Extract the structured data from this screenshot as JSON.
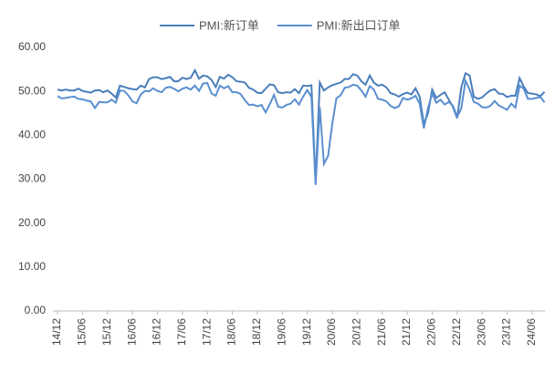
{
  "chart_data": {
    "type": "line",
    "categories": [
      "14/12",
      null,
      null,
      null,
      null,
      null,
      "15/06",
      null,
      null,
      null,
      null,
      null,
      "15/12",
      null,
      null,
      null,
      null,
      null,
      "16/06",
      null,
      null,
      null,
      null,
      null,
      "16/12",
      null,
      null,
      null,
      null,
      null,
      "17/06",
      null,
      null,
      null,
      null,
      null,
      "17/12",
      null,
      null,
      null,
      null,
      null,
      "18/06",
      null,
      null,
      null,
      null,
      null,
      "18/12",
      null,
      null,
      null,
      null,
      null,
      "19/06",
      null,
      null,
      null,
      null,
      null,
      "19/12",
      null,
      null,
      null,
      null,
      null,
      "20/06",
      null,
      null,
      null,
      null,
      null,
      "20/12",
      null,
      null,
      null,
      null,
      null,
      "21/06",
      null,
      null,
      null,
      null,
      null,
      "21/12",
      null,
      null,
      null,
      null,
      null,
      "22/06",
      null,
      null,
      null,
      null,
      null,
      "22/12",
      null,
      null,
      null,
      null,
      null,
      "23/06",
      null,
      null,
      null,
      null,
      null,
      "23/12",
      null,
      null,
      null,
      null,
      null,
      "24/06",
      null,
      null,
      null
    ],
    "series": [
      {
        "name": "PMI:新订单",
        "color": "#4a7ebb",
        "values": [
          50.4,
          50.2,
          50.4,
          50.2,
          50.2,
          50.6,
          50.1,
          49.9,
          49.7,
          50.2,
          50.3,
          49.8,
          50.2,
          49.5,
          48.6,
          51.3,
          51.0,
          50.7,
          50.5,
          50.4,
          51.3,
          50.9,
          52.8,
          53.2,
          53.2,
          52.8,
          53.0,
          53.3,
          52.3,
          52.3,
          53.1,
          52.8,
          53.1,
          54.8,
          52.9,
          53.6,
          53.4,
          52.6,
          51.0,
          53.3,
          52.9,
          53.8,
          53.2,
          52.3,
          52.2,
          52.0,
          50.8,
          50.4,
          49.7,
          49.6,
          50.6,
          51.6,
          51.4,
          49.8,
          49.6,
          49.8,
          49.7,
          50.5,
          49.6,
          51.3,
          51.2,
          51.4,
          29.3,
          52.0,
          50.2,
          50.9,
          51.4,
          51.7,
          52.0,
          52.8,
          52.8,
          53.9,
          53.6,
          52.3,
          51.5,
          53.6,
          52.0,
          51.3,
          51.5,
          50.9,
          49.6,
          49.3,
          48.8,
          49.4,
          49.7,
          49.3,
          50.7,
          48.8,
          42.6,
          45.0,
          50.4,
          48.5,
          49.2,
          49.8,
          48.1,
          46.4,
          43.9,
          50.9,
          54.1,
          53.6,
          48.8,
          48.3,
          48.6,
          49.5,
          50.2,
          50.5,
          49.5,
          49.4,
          48.7,
          49.0,
          49.0,
          53.0,
          51.1,
          49.6,
          49.5,
          49.3,
          48.9,
          49.9
        ]
      },
      {
        "name": "PMI:新出口订单",
        "color": "#5b8fcf",
        "values": [
          48.9,
          48.4,
          48.5,
          48.7,
          48.8,
          48.3,
          48.2,
          47.9,
          47.7,
          46.2,
          47.6,
          47.5,
          47.5,
          48.1,
          47.4,
          50.2,
          50.1,
          49.1,
          47.7,
          47.3,
          49.3,
          50.1,
          50.0,
          50.7,
          50.1,
          49.8,
          50.8,
          51.0,
          50.6,
          50.0,
          50.6,
          50.9,
          50.4,
          51.3,
          50.1,
          51.8,
          51.9,
          49.5,
          49.0,
          51.3,
          50.7,
          51.2,
          49.8,
          49.8,
          49.4,
          48.0,
          46.9,
          47.0,
          46.6,
          46.9,
          45.2,
          47.1,
          49.2,
          46.5,
          46.3,
          46.9,
          47.2,
          48.2,
          47.0,
          48.8,
          50.3,
          48.7,
          28.7,
          46.4,
          33.5,
          35.3,
          42.6,
          48.4,
          49.1,
          50.8,
          51.0,
          51.5,
          51.3,
          50.2,
          48.8,
          51.2,
          50.4,
          48.3,
          48.1,
          47.7,
          46.7,
          46.2,
          46.6,
          48.5,
          48.1,
          48.4,
          49.0,
          47.2,
          41.6,
          46.2,
          49.5,
          47.4,
          48.1,
          47.0,
          47.6,
          46.7,
          44.2,
          46.1,
          52.4,
          50.4,
          47.6,
          47.2,
          46.4,
          46.3,
          46.7,
          47.8,
          46.8,
          46.3,
          45.8,
          47.2,
          46.3,
          51.3,
          50.6,
          48.3,
          48.3,
          48.5,
          48.7,
          47.5
        ]
      }
    ],
    "ylim": [
      0,
      60
    ],
    "yticks": [
      {
        "value": 0,
        "label": "0.00"
      },
      {
        "value": 10,
        "label": "10.00"
      },
      {
        "value": 20,
        "label": "20.00"
      },
      {
        "value": 30,
        "label": "30.00"
      },
      {
        "value": 40,
        "label": "40.00"
      },
      {
        "value": 50,
        "label": "50.00"
      },
      {
        "value": 60,
        "label": "60.00"
      }
    ],
    "grid": false,
    "legend": "top"
  }
}
